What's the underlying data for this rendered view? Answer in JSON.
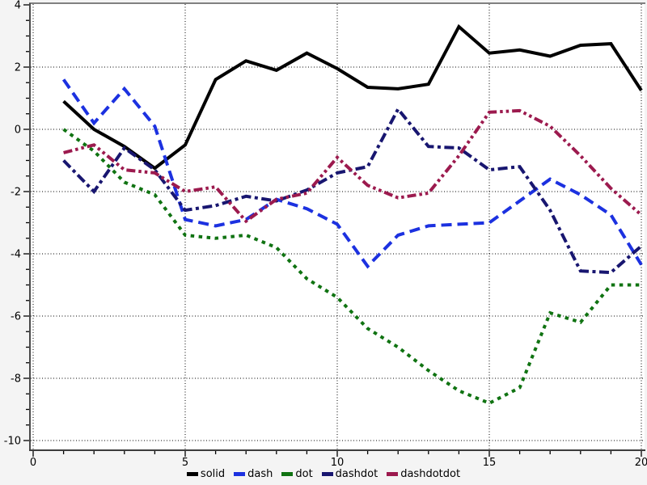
{
  "chart_data": {
    "type": "line",
    "title": "",
    "xlabel": "",
    "ylabel": "",
    "xlim": [
      0,
      20
    ],
    "ylim": [
      -10,
      4
    ],
    "grid": "dotted",
    "legend_position": "bottom-center",
    "x_major_ticks": [
      0,
      5,
      10,
      15,
      20
    ],
    "x_minor_step": 1,
    "y_major_ticks": [
      4,
      2,
      0,
      -2,
      -4,
      -6,
      -8,
      -10
    ],
    "y_minor_step": 0.5,
    "x": [
      1,
      2,
      3,
      4,
      5,
      6,
      7,
      8,
      9,
      10,
      11,
      12,
      13,
      14,
      15,
      16,
      17,
      18,
      19,
      20
    ],
    "series": [
      {
        "name": "solid",
        "line_style": "solid",
        "color": "#000000",
        "values": [
          0.9,
          0.0,
          -0.55,
          -1.25,
          -0.5,
          1.6,
          2.2,
          1.9,
          2.45,
          1.95,
          1.35,
          1.3,
          1.45,
          3.3,
          2.45,
          2.55,
          2.35,
          2.7,
          2.75,
          1.25
        ]
      },
      {
        "name": "dash",
        "line_style": "long-dash",
        "color": "#1c31e0",
        "values": [
          1.6,
          0.2,
          1.3,
          0.1,
          -2.9,
          -3.1,
          -2.9,
          -2.25,
          -2.55,
          -3.05,
          -4.4,
          -3.4,
          -3.1,
          -3.05,
          -3.0,
          -2.3,
          -1.6,
          -2.1,
          -2.75,
          -4.35
        ]
      },
      {
        "name": "dot",
        "line_style": "dot",
        "color": "#107312",
        "values": [
          0.0,
          -0.7,
          -1.7,
          -2.1,
          -3.4,
          -3.5,
          -3.4,
          -3.8,
          -4.8,
          -5.4,
          -6.4,
          -7.0,
          -7.75,
          -8.4,
          -8.8,
          -8.3,
          -5.9,
          -6.2,
          -5.0,
          -5.0
        ]
      },
      {
        "name": "dashdot",
        "line_style": "dash-dot",
        "color": "#181670",
        "values": [
          -1.0,
          -2.0,
          -0.6,
          -1.3,
          -2.6,
          -2.45,
          -2.15,
          -2.3,
          -1.95,
          -1.4,
          -1.2,
          0.65,
          -0.55,
          -0.6,
          -1.3,
          -1.2,
          -2.6,
          -4.55,
          -4.6,
          -3.75
        ]
      },
      {
        "name": "dashdotdot",
        "line_style": "dash-dot-dot",
        "color": "#9c1a4e",
        "values": [
          -0.75,
          -0.5,
          -1.3,
          -1.4,
          -2.0,
          -1.85,
          -2.95,
          -2.25,
          -2.05,
          -0.9,
          -1.8,
          -2.2,
          -2.05,
          -0.85,
          0.55,
          0.6,
          0.1,
          -0.85,
          -1.9,
          -2.75
        ]
      }
    ],
    "x_tick_labels": [
      "0",
      "5",
      "10",
      "15",
      "20"
    ],
    "y_tick_labels": [
      "4",
      "2",
      "0",
      "-2",
      "-4",
      "-6",
      "-8",
      "-10"
    ]
  },
  "legend": {
    "items": [
      {
        "label": "solid",
        "color": "#000000"
      },
      {
        "label": "dash",
        "color": "#1c31e0"
      },
      {
        "label": "dot",
        "color": "#107312"
      },
      {
        "label": "dashdot",
        "color": "#181670"
      },
      {
        "label": "dashdotdot",
        "color": "#9c1a4e"
      }
    ]
  },
  "colors": {
    "figure_background": "#f4f4f4",
    "plot_background": "#ffffff",
    "frame_top": "#808080",
    "frame_left": "#4a4a4a",
    "frame_bottom": "#3c3c3c",
    "grid": "#000000",
    "tick": "#000000"
  }
}
